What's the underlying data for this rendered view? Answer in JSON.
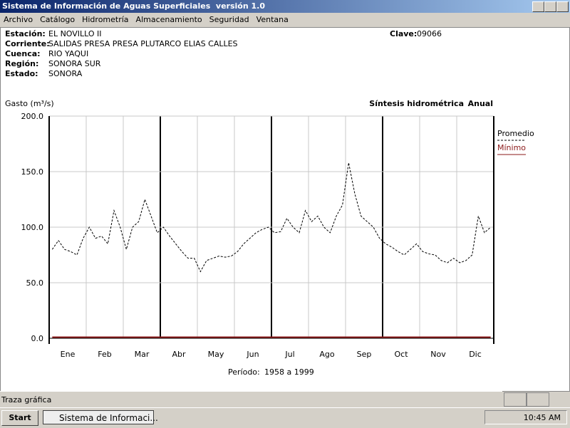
{
  "window": {
    "title": "Sistema de Información de Aguas Superficiales  versión 1.0"
  },
  "menu": [
    "Archivo",
    "Catálogo",
    "Hidrometría",
    "Almacenamiento",
    "Seguridad",
    "Ventana"
  ],
  "info": {
    "fields": [
      [
        "Estación:",
        "EL NOVILLO II"
      ],
      [
        "Corriente:",
        "SALIDAS PRESA PRESA PLUTARCO ELIAS CALLES"
      ],
      [
        "Cuenca:",
        "RIO YAQUI"
      ],
      [
        "Región:",
        "SONORA SUR"
      ],
      [
        "Estado:",
        "SONORA"
      ]
    ],
    "clave_label": "Clave:",
    "clave": "09066"
  },
  "chart_data": {
    "type": "line",
    "y_label": "Gasto (m³/s)",
    "title": "Síntesis hidrométrica",
    "subtitle": "Anual",
    "period_label": "Período:",
    "period": "1958 a 1999",
    "categories": [
      null,
      null,
      null,
      "Ene",
      null,
      null,
      null,
      null,
      null,
      "Feb",
      null,
      null,
      null,
      null,
      null,
      "Mar",
      null,
      null,
      null,
      null,
      null,
      "Abr",
      null,
      null,
      null,
      null,
      null,
      "May",
      null,
      null,
      null,
      null,
      null,
      "Jun",
      null,
      null,
      null,
      null,
      null,
      "Jul",
      null,
      null,
      null,
      null,
      null,
      "Ago",
      null,
      null,
      null,
      null,
      null,
      "Sep",
      null,
      null,
      null,
      null,
      null,
      "Oct",
      null,
      null,
      null,
      null,
      null,
      "Nov",
      null,
      null,
      null,
      null,
      null,
      "Dic",
      null,
      null
    ],
    "series": [
      {
        "name": "Promedio",
        "color": "#000000",
        "dashed": true,
        "values": [
          80,
          88,
          80,
          78,
          75,
          90,
          100,
          90,
          92,
          85,
          115,
          100,
          80,
          100,
          105,
          125,
          110,
          95,
          100,
          92,
          85,
          78,
          72,
          72,
          60,
          70,
          72,
          74,
          73,
          74,
          78,
          85,
          90,
          95,
          98,
          100,
          95,
          96,
          108,
          100,
          95,
          115,
          105,
          110,
          100,
          95,
          110,
          120,
          158,
          130,
          110,
          105,
          100,
          90,
          85,
          82,
          78,
          75,
          80,
          85,
          78,
          76,
          75,
          70,
          68,
          72,
          68,
          70,
          75,
          110,
          95,
          100
        ]
      },
      {
        "name": "Mínimo",
        "color": "#8b1a1a",
        "dashed": false,
        "values": [
          1,
          1,
          1,
          1,
          1,
          1,
          1,
          1,
          1,
          1,
          1,
          1,
          1,
          1,
          1,
          1,
          1,
          1,
          1,
          1,
          1,
          1,
          1,
          1,
          1,
          1,
          1,
          1,
          1,
          1,
          1,
          1,
          1,
          1,
          1,
          1,
          1,
          1,
          1,
          1,
          1,
          1,
          1,
          1,
          1,
          1,
          1,
          1,
          1,
          1,
          1,
          1,
          1,
          1,
          1,
          1,
          1,
          1,
          1,
          1,
          1,
          1,
          1,
          1,
          1,
          1,
          1,
          1,
          1,
          1,
          1,
          1
        ]
      }
    ],
    "ylim": [
      0,
      200
    ],
    "yticks": [
      {
        "value": 0,
        "label": "0.0"
      },
      {
        "value": 50,
        "label": "50.0"
      },
      {
        "value": 100,
        "label": "100.0"
      },
      {
        "value": 150,
        "label": "150.0"
      },
      {
        "value": 200,
        "label": "200.0"
      }
    ],
    "grid": true
  },
  "status": {
    "text": "Traza gráfica"
  },
  "taskbar": {
    "start": "Start",
    "task": "Sistema de Informaci...",
    "clock": "10:45 AM"
  }
}
